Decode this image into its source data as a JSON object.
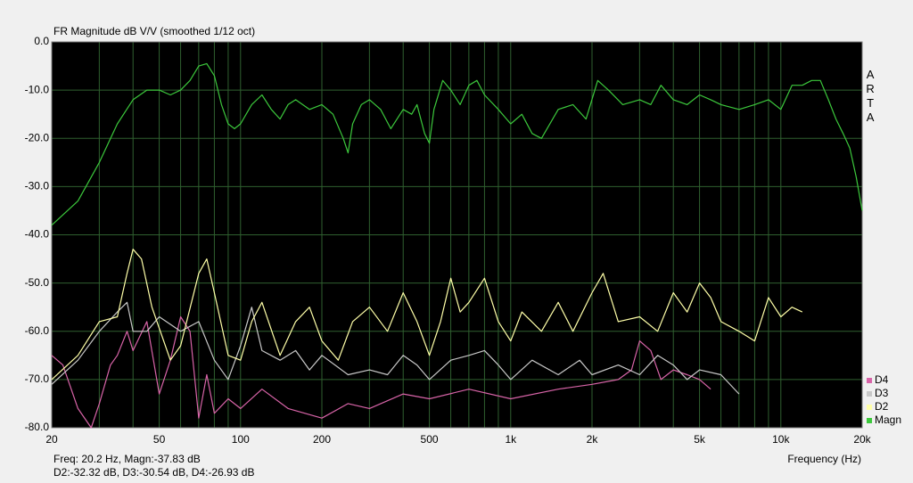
{
  "chart_data": {
    "type": "line",
    "title": "FR Magnitude dB V/V (smoothed 1/12 oct)",
    "brand": "ARTA",
    "x_label": "Frequency (Hz)",
    "status": [
      "Freq: 20.2 Hz, Magn:-37.83 dB",
      "D2:-32.32 dB, D3:-30.54 dB, D4:-26.93 dB"
    ],
    "log_x": true,
    "grid": true,
    "legend": "lower right",
    "background": "#000000",
    "grid_color": "#2f5f2f",
    "xlim": [
      20,
      20000
    ],
    "xticks": [
      20,
      50,
      100,
      200,
      500,
      {
        "value": 1000,
        "label": "1k"
      },
      {
        "value": 2000,
        "label": "2k"
      },
      {
        "value": 5000,
        "label": "5k"
      },
      {
        "value": 10000,
        "label": "10k"
      },
      {
        "value": 20000,
        "label": "20k"
      }
    ],
    "minor_xticks": [
      30,
      40,
      60,
      70,
      80,
      90,
      300,
      400,
      600,
      700,
      800,
      900,
      3000,
      4000,
      6000,
      7000,
      8000,
      9000
    ],
    "ylim": [
      -80,
      0
    ],
    "yticks": [
      {
        "value": 0,
        "label": "0.0"
      },
      {
        "value": -10,
        "label": "-10.0"
      },
      {
        "value": -20,
        "label": "-20.0"
      },
      {
        "value": -30,
        "label": "-30.0"
      },
      {
        "value": -40,
        "label": "-40.0"
      },
      {
        "value": -50,
        "label": "-50.0"
      },
      {
        "value": -60,
        "label": "-60.0"
      },
      {
        "value": -70,
        "label": "-70.0"
      },
      {
        "value": -80,
        "label": "-80.0"
      }
    ],
    "series": [
      {
        "name": "Magn",
        "color": "#3cc83c",
        "x": [
          20,
          25,
          30,
          35,
          40,
          45,
          50,
          55,
          60,
          65,
          70,
          75,
          80,
          85,
          90,
          95,
          100,
          110,
          120,
          130,
          140,
          150,
          160,
          180,
          200,
          220,
          240,
          250,
          260,
          280,
          300,
          330,
          360,
          400,
          430,
          450,
          480,
          500,
          520,
          560,
          600,
          650,
          700,
          750,
          800,
          900,
          1000,
          1100,
          1200,
          1300,
          1500,
          1700,
          1900,
          2100,
          2300,
          2600,
          3000,
          3300,
          3600,
          4000,
          4500,
          5000,
          5500,
          6000,
          7000,
          8000,
          9000,
          10000,
          11000,
          12000,
          13000,
          14000,
          15000,
          16000,
          17000,
          18000,
          19000,
          20000
        ],
        "values": [
          -38,
          -33,
          -25,
          -17,
          -12,
          -10,
          -10,
          -11,
          -10,
          -8,
          -5,
          -4.5,
          -7,
          -13,
          -17,
          -18,
          -17,
          -13,
          -11,
          -14,
          -16,
          -13,
          -12,
          -14,
          -13,
          -15,
          -20,
          -23,
          -17,
          -13,
          -12,
          -14,
          -18,
          -14,
          -15,
          -13,
          -19,
          -21,
          -14,
          -8,
          -10,
          -13,
          -9,
          -8,
          -11,
          -14,
          -17,
          -15,
          -19,
          -20,
          -14,
          -13,
          -16,
          -8,
          -10,
          -13,
          -12,
          -13,
          -9,
          -12,
          -13,
          -11,
          -12,
          -13,
          -14,
          -13,
          -12,
          -14,
          -9,
          -9,
          -8,
          -8,
          -12,
          -16,
          -19,
          -22,
          -28,
          -35
        ]
      },
      {
        "name": "D2",
        "color": "#ffffa8",
        "x": [
          20,
          25,
          30,
          35,
          38,
          40,
          43,
          47,
          55,
          60,
          70,
          75,
          80,
          90,
          100,
          110,
          120,
          140,
          160,
          180,
          200,
          230,
          260,
          300,
          350,
          400,
          450,
          500,
          550,
          600,
          650,
          700,
          800,
          900,
          1000,
          1100,
          1300,
          1500,
          1700,
          2000,
          2200,
          2500,
          3000,
          3500,
          4000,
          4500,
          5000,
          5500,
          6000,
          7000,
          8000,
          9000,
          10000,
          11000,
          12000
        ],
        "values": [
          -70,
          -65,
          -58,
          -57,
          -48,
          -43,
          -45,
          -55,
          -66,
          -63,
          -48,
          -45,
          -52,
          -65,
          -66,
          -58,
          -54,
          -65,
          -58,
          -55,
          -62,
          -66,
          -58,
          -55,
          -60,
          -52,
          -58,
          -65,
          -58,
          -49,
          -56,
          -54,
          -49,
          -58,
          -62,
          -56,
          -60,
          -54,
          -60,
          -52,
          -48,
          -58,
          -57,
          -60,
          -52,
          -56,
          -50,
          -53,
          -58,
          -60,
          -62,
          -53,
          -57,
          -55,
          -56
        ]
      },
      {
        "name": "D3",
        "color": "#c8c8c8",
        "x": [
          20,
          25,
          30,
          35,
          38,
          40,
          45,
          50,
          60,
          70,
          80,
          90,
          100,
          110,
          120,
          140,
          160,
          180,
          200,
          250,
          300,
          350,
          400,
          450,
          500,
          600,
          700,
          800,
          900,
          1000,
          1200,
          1500,
          1800,
          2000,
          2500,
          3000,
          3500,
          4000,
          4500,
          5000,
          6000,
          7000
        ],
        "values": [
          -71,
          -66,
          -60,
          -56,
          -54,
          -60,
          -60,
          -57,
          -60,
          -58,
          -66,
          -70,
          -63,
          -55,
          -64,
          -66,
          -64,
          -68,
          -65,
          -69,
          -68,
          -69,
          -65,
          -67,
          -70,
          -66,
          -65,
          -64,
          -67,
          -70,
          -66,
          -69,
          -66,
          -69,
          -67,
          -69,
          -65,
          -67,
          -70,
          -68,
          -69,
          -73
        ]
      },
      {
        "name": "D4",
        "color": "#d864a8",
        "x": [
          20,
          22,
          25,
          28,
          30,
          33,
          35,
          38,
          40,
          45,
          50,
          55,
          60,
          65,
          70,
          75,
          80,
          90,
          100,
          120,
          150,
          200,
          250,
          300,
          400,
          500,
          700,
          1000,
          1500,
          2000,
          2500,
          2800,
          3000,
          3300,
          3600,
          4000,
          4500,
          5000,
          5500
        ],
        "values": [
          -65,
          -67,
          -76,
          -80,
          -75,
          -67,
          -65,
          -60,
          -64,
          -58,
          -73,
          -66,
          -57,
          -60,
          -78,
          -69,
          -77,
          -74,
          -76,
          -72,
          -76,
          -78,
          -75,
          -76,
          -73,
          -74,
          -72,
          -74,
          -72,
          -71,
          -70,
          -68,
          -62,
          -64,
          -70,
          -68,
          -69,
          -70,
          -72
        ]
      }
    ]
  }
}
